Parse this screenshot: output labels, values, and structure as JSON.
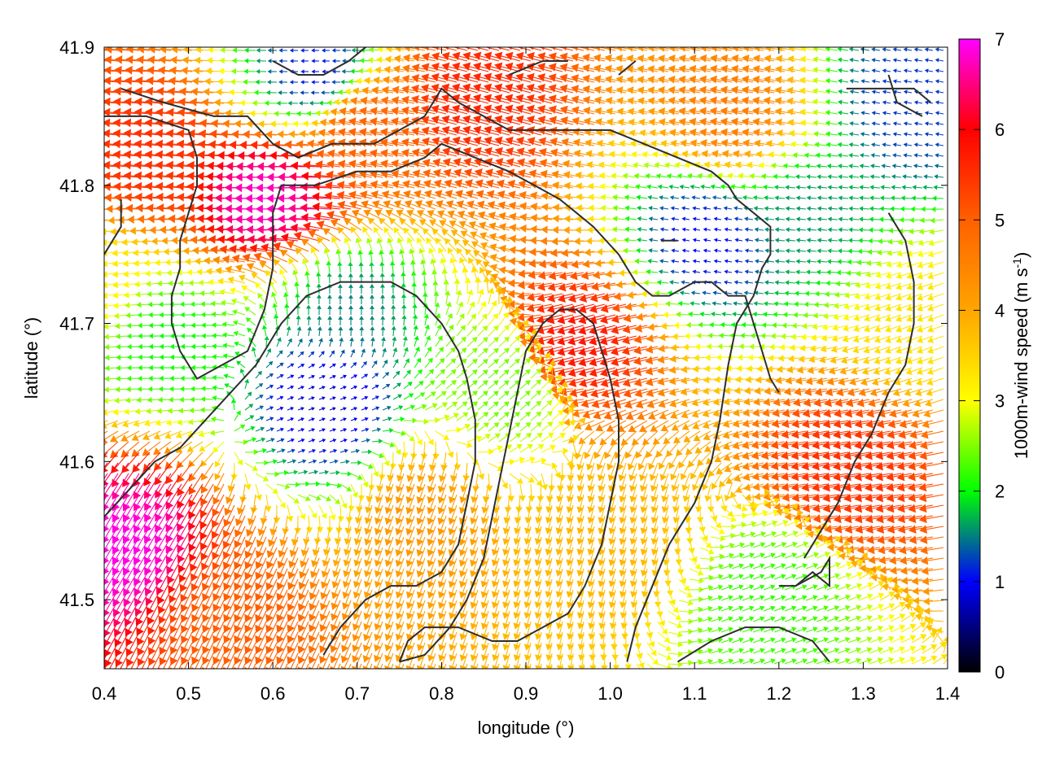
{
  "chart_data": {
    "type": "vector-field",
    "xlabel": "longitude (°)",
    "ylabel": "latitude (°)",
    "xlim": [
      0.4,
      1.4
    ],
    "ylim": [
      41.45,
      41.9
    ],
    "x_ticks": [
      "0.4",
      "0.5",
      "0.6",
      "0.7",
      "0.8",
      "0.9",
      "1.0",
      "1.1",
      "1.2",
      "1.3",
      "1.4"
    ],
    "x_tick_values": [
      0.4,
      0.5,
      0.6,
      0.7,
      0.8,
      0.9,
      1.0,
      1.1,
      1.2,
      1.3,
      1.4
    ],
    "y_ticks": [
      "41.5",
      "41.6",
      "41.7",
      "41.8",
      "41.9"
    ],
    "y_tick_values": [
      41.5,
      41.6,
      41.7,
      41.8,
      41.9
    ],
    "colorbar": {
      "label_main": "1000m-wind speed (m s",
      "label_sup": "-1",
      "label_close": ")",
      "range": [
        0,
        7
      ],
      "ticks": [
        "0",
        "1",
        "2",
        "3",
        "4",
        "5",
        "6",
        "7"
      ],
      "tick_values": [
        0,
        1,
        2,
        3,
        4,
        5,
        6,
        7
      ],
      "stops": [
        {
          "v": 0,
          "color": "#000000"
        },
        {
          "v": 1,
          "color": "#0000ff"
        },
        {
          "v": 2,
          "color": "#00ff00"
        },
        {
          "v": 3,
          "color": "#ffff00"
        },
        {
          "v": 4,
          "color": "#ffa500"
        },
        {
          "v": 5,
          "color": "#ff6000"
        },
        {
          "v": 6,
          "color": "#ff0000"
        },
        {
          "v": 7,
          "color": "#ff00ff"
        }
      ]
    },
    "wind_regions": [
      {
        "lon": 0.62,
        "lat": 41.79,
        "speed": 6.8,
        "dir": 180
      },
      {
        "lon": 0.47,
        "lat": 41.82,
        "speed": 5.5,
        "dir": 175
      },
      {
        "lon": 0.44,
        "lat": 41.55,
        "speed": 6.9,
        "dir": 240
      },
      {
        "lon": 0.98,
        "lat": 41.69,
        "speed": 5.8,
        "dir": 195
      },
      {
        "lon": 0.72,
        "lat": 41.84,
        "speed": 5.0,
        "dir": 170
      },
      {
        "lon": 0.86,
        "lat": 41.86,
        "speed": 5.6,
        "dir": 165
      },
      {
        "lon": 1.3,
        "lat": 41.6,
        "speed": 5.5,
        "dir": 190
      },
      {
        "lon": 1.16,
        "lat": 41.85,
        "speed": 4.6,
        "dir": 170
      },
      {
        "lon": 0.78,
        "lat": 41.57,
        "speed": 4.2,
        "dir": 250
      },
      {
        "lon": 1.0,
        "lat": 41.55,
        "speed": 3.8,
        "dir": 255
      },
      {
        "lon": 0.55,
        "lat": 41.5,
        "speed": 5.0,
        "dir": 245
      },
      {
        "lon": 0.69,
        "lat": 41.71,
        "speed": 1.5,
        "dir": 90
      },
      {
        "lon": 0.66,
        "lat": 41.64,
        "speed": 0.8,
        "dir": 20
      },
      {
        "lon": 1.12,
        "lat": 41.76,
        "speed": 1.0,
        "dir": 170
      },
      {
        "lon": 1.24,
        "lat": 41.78,
        "speed": 1.6,
        "dir": 175
      },
      {
        "lon": 0.66,
        "lat": 41.88,
        "speed": 1.0,
        "dir": 180
      },
      {
        "lon": 1.36,
        "lat": 41.86,
        "speed": 1.2,
        "dir": 170
      },
      {
        "lon": 1.18,
        "lat": 41.5,
        "speed": 2.2,
        "dir": 20
      },
      {
        "lon": 0.48,
        "lat": 41.69,
        "speed": 2.0,
        "dir": 180
      },
      {
        "lon": 0.87,
        "lat": 41.65,
        "speed": 2.4,
        "dir": 40
      },
      {
        "lon": 1.38,
        "lat": 41.7,
        "speed": 3.3,
        "dir": 200
      },
      {
        "lon": 0.4,
        "lat": 41.73,
        "speed": 3.2,
        "dir": 190
      }
    ],
    "contours": [
      [
        [
          0.42,
          41.87
        ],
        [
          0.47,
          41.86
        ],
        [
          0.53,
          41.85
        ],
        [
          0.57,
          41.85
        ],
        [
          0.6,
          41.83
        ],
        [
          0.63,
          41.82
        ],
        [
          0.67,
          41.83
        ],
        [
          0.72,
          41.83
        ],
        [
          0.75,
          41.84
        ],
        [
          0.78,
          41.85
        ],
        [
          0.8,
          41.87
        ],
        [
          0.82,
          41.86
        ],
        [
          0.85,
          41.85
        ],
        [
          0.88,
          41.84
        ],
        [
          0.92,
          41.84
        ],
        [
          0.96,
          41.84
        ],
        [
          1.0,
          41.84
        ],
        [
          1.04,
          41.83
        ],
        [
          1.08,
          41.82
        ],
        [
          1.12,
          41.81
        ],
        [
          1.14,
          41.8
        ],
        [
          1.15,
          41.79
        ],
        [
          1.17,
          41.78
        ],
        [
          1.19,
          41.77
        ],
        [
          1.19,
          41.76
        ],
        [
          1.19,
          41.75
        ],
        [
          1.18,
          41.74
        ],
        [
          1.17,
          41.72
        ],
        [
          1.15,
          41.7
        ],
        [
          1.14,
          41.67
        ],
        [
          1.13,
          41.63
        ],
        [
          1.12,
          41.6
        ],
        [
          1.1,
          41.57
        ],
        [
          1.07,
          41.54
        ],
        [
          1.05,
          41.51
        ],
        [
          1.03,
          41.48
        ],
        [
          1.02,
          41.455
        ]
      ],
      [
        [
          0.4,
          41.85
        ],
        [
          0.45,
          41.85
        ],
        [
          0.5,
          41.84
        ],
        [
          0.51,
          41.82
        ],
        [
          0.51,
          41.8
        ],
        [
          0.5,
          41.78
        ],
        [
          0.49,
          41.76
        ],
        [
          0.49,
          41.74
        ],
        [
          0.48,
          41.72
        ],
        [
          0.48,
          41.7
        ],
        [
          0.49,
          41.68
        ],
        [
          0.51,
          41.66
        ],
        [
          0.54,
          41.67
        ],
        [
          0.57,
          41.68
        ],
        [
          0.59,
          41.71
        ],
        [
          0.6,
          41.74
        ],
        [
          0.6,
          41.78
        ],
        [
          0.61,
          41.8
        ],
        [
          0.65,
          41.8
        ],
        [
          0.7,
          41.81
        ],
        [
          0.74,
          41.81
        ],
        [
          0.78,
          41.82
        ],
        [
          0.8,
          41.83
        ],
        [
          0.84,
          41.82
        ],
        [
          0.88,
          41.81
        ],
        [
          0.91,
          41.8
        ],
        [
          0.94,
          41.79
        ],
        [
          0.96,
          41.78
        ],
        [
          0.98,
          41.77
        ],
        [
          1.01,
          41.75
        ],
        [
          1.03,
          41.73
        ],
        [
          1.05,
          41.72
        ],
        [
          1.07,
          41.72
        ],
        [
          1.1,
          41.73
        ],
        [
          1.12,
          41.73
        ],
        [
          1.14,
          41.72
        ],
        [
          1.16,
          41.72
        ],
        [
          1.17,
          41.7
        ],
        [
          1.18,
          41.68
        ],
        [
          1.19,
          41.66
        ],
        [
          1.2,
          41.65
        ]
      ],
      [
        [
          0.4,
          41.56
        ],
        [
          0.43,
          41.58
        ],
        [
          0.46,
          41.6
        ],
        [
          0.49,
          41.61
        ],
        [
          0.52,
          41.63
        ],
        [
          0.55,
          41.65
        ],
        [
          0.58,
          41.67
        ],
        [
          0.61,
          41.7
        ],
        [
          0.64,
          41.72
        ],
        [
          0.68,
          41.73
        ],
        [
          0.71,
          41.73
        ],
        [
          0.74,
          41.73
        ],
        [
          0.77,
          41.72
        ],
        [
          0.8,
          41.7
        ],
        [
          0.82,
          41.68
        ],
        [
          0.83,
          41.66
        ],
        [
          0.84,
          41.63
        ],
        [
          0.84,
          41.6
        ],
        [
          0.83,
          41.57
        ],
        [
          0.82,
          41.54
        ],
        [
          0.8,
          41.52
        ],
        [
          0.77,
          41.51
        ],
        [
          0.74,
          41.51
        ],
        [
          0.71,
          41.5
        ],
        [
          0.68,
          41.48
        ],
        [
          0.66,
          41.46
        ]
      ],
      [
        [
          0.75,
          41.455
        ],
        [
          0.76,
          41.47
        ],
        [
          0.78,
          41.48
        ],
        [
          0.82,
          41.48
        ],
        [
          0.86,
          41.47
        ],
        [
          0.89,
          41.47
        ],
        [
          0.92,
          41.48
        ],
        [
          0.95,
          41.49
        ],
        [
          0.97,
          41.51
        ],
        [
          0.99,
          41.54
        ],
        [
          1.0,
          41.57
        ],
        [
          1.01,
          41.6
        ],
        [
          1.01,
          41.63
        ],
        [
          1.0,
          41.66
        ],
        [
          0.99,
          41.68
        ],
        [
          0.98,
          41.7
        ],
        [
          0.96,
          41.71
        ],
        [
          0.94,
          41.71
        ],
        [
          0.92,
          41.7
        ],
        [
          0.9,
          41.68
        ],
        [
          0.89,
          41.65
        ],
        [
          0.88,
          41.62
        ],
        [
          0.87,
          41.59
        ],
        [
          0.86,
          41.56
        ],
        [
          0.85,
          41.53
        ],
        [
          0.83,
          41.5
        ],
        [
          0.81,
          41.48
        ],
        [
          0.78,
          41.46
        ],
        [
          0.75,
          41.455
        ]
      ],
      [
        [
          1.08,
          41.455
        ],
        [
          1.12,
          41.47
        ],
        [
          1.16,
          41.48
        ],
        [
          1.2,
          41.48
        ],
        [
          1.24,
          41.47
        ],
        [
          1.26,
          41.455
        ]
      ],
      [
        [
          1.2,
          41.51
        ],
        [
          1.22,
          41.51
        ],
        [
          1.24,
          41.52
        ],
        [
          1.26,
          41.51
        ],
        [
          1.26,
          41.53
        ],
        [
          1.25,
          41.52
        ],
        [
          1.22,
          41.51
        ],
        [
          1.2,
          41.51
        ]
      ],
      [
        [
          1.33,
          41.88
        ],
        [
          1.34,
          41.86
        ],
        [
          1.37,
          41.85
        ]
      ],
      [
        [
          1.28,
          41.87
        ],
        [
          1.33,
          41.87
        ],
        [
          1.36,
          41.87
        ],
        [
          1.38,
          41.86
        ]
      ],
      [
        [
          1.33,
          41.78
        ],
        [
          1.35,
          41.76
        ],
        [
          1.36,
          41.73
        ],
        [
          1.36,
          41.7
        ],
        [
          1.35,
          41.67
        ],
        [
          1.33,
          41.65
        ],
        [
          1.31,
          41.62
        ],
        [
          1.29,
          41.6
        ],
        [
          1.27,
          41.57
        ],
        [
          1.25,
          41.55
        ],
        [
          1.23,
          41.53
        ]
      ],
      [
        [
          0.6,
          41.89
        ],
        [
          0.63,
          41.88
        ],
        [
          0.66,
          41.88
        ],
        [
          0.69,
          41.89
        ],
        [
          0.71,
          41.9
        ]
      ],
      [
        [
          0.88,
          41.88
        ],
        [
          0.92,
          41.89
        ],
        [
          0.95,
          41.89
        ]
      ],
      [
        [
          1.01,
          41.88
        ],
        [
          1.03,
          41.89
        ]
      ],
      [
        [
          0.4,
          41.75
        ],
        [
          0.42,
          41.77
        ],
        [
          0.42,
          41.79
        ]
      ],
      [
        [
          1.06,
          41.76
        ],
        [
          1.08,
          41.76
        ],
        [
          1.07,
          41.76
        ],
        [
          1.06,
          41.76
        ]
      ]
    ]
  }
}
